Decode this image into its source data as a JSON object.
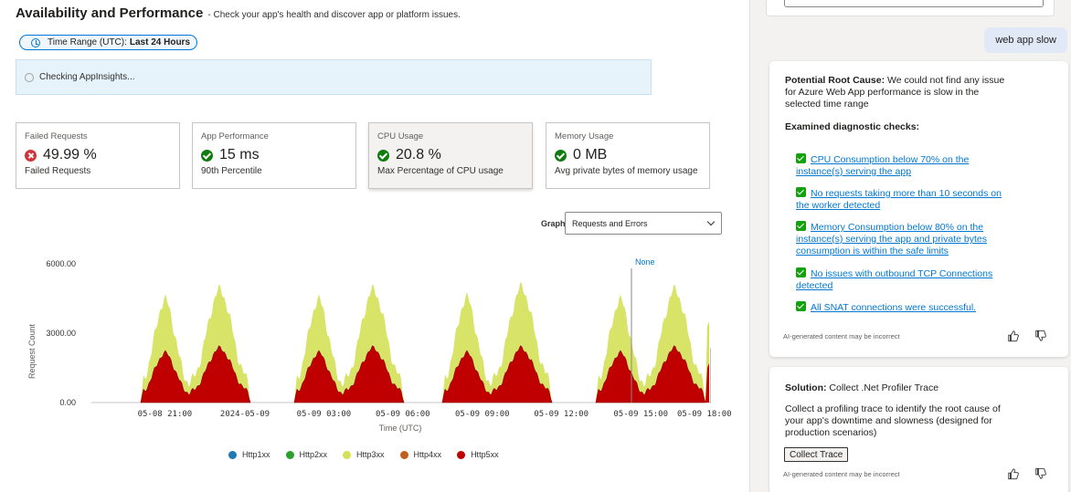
{
  "header": {
    "title": "Availability and Performance",
    "subtitle": "Check your app's health and discover app or platform issues."
  },
  "time_range": {
    "prefix": "Time Range (UTC):",
    "value": "Last 24 Hours"
  },
  "banner": {
    "text": "Checking AppInsights..."
  },
  "cards": [
    {
      "label": "Failed Requests",
      "value": "49.99 %",
      "desc": "Failed Requests",
      "status": "error"
    },
    {
      "label": "App Performance",
      "value": "15 ms",
      "desc": "90th Percentile",
      "status": "ok"
    },
    {
      "label": "CPU Usage",
      "value": "20.8 %",
      "desc": "Max Percentage of CPU usage",
      "status": "ok",
      "selected": true
    },
    {
      "label": "Memory Usage",
      "value": "0 MB",
      "desc": "Avg private bytes of memory usage",
      "status": "ok"
    }
  ],
  "graph": {
    "label": "Graph",
    "selected": "Requests and Errors"
  },
  "chart_data": {
    "type": "area",
    "ylabel": "Request Count",
    "xlabel": "Time (UTC)",
    "ylim": [
      0,
      6000
    ],
    "yticks": [
      "0.00",
      "3000.00",
      "6000.00"
    ],
    "xticks": [
      "05-08 21:00",
      "2024-05-09",
      "05-09 03:00",
      "05-09 06:00",
      "05-09 09:00",
      "05-09 12:00",
      "05-09 15:00",
      "05-09 18:00"
    ],
    "cursor_label": "None",
    "legend_position": "bottom",
    "series": [
      {
        "name": "Http1xx",
        "color": "#1f77b4"
      },
      {
        "name": "Http2xx",
        "color": "#2ca02c"
      },
      {
        "name": "Http3xx",
        "color": "#d4e157"
      },
      {
        "name": "Http4xx",
        "color": "#c0601a"
      },
      {
        "name": "Http5xx",
        "color": "#c00000"
      }
    ],
    "blocks": [
      {
        "start": 0.09,
        "end": 0.29,
        "peak_total": 5000,
        "peak_5xx": 2400
      },
      {
        "start": 0.37,
        "end": 0.57,
        "peak_total": 5000,
        "peak_5xx": 2400
      },
      {
        "start": 0.64,
        "end": 0.84,
        "peak_total": 5100,
        "peak_5xx": 2400
      },
      {
        "start": 0.92,
        "end": 1.12,
        "peak_total": 5000,
        "peak_5xx": 2400
      },
      {
        "start": 1.19,
        "end": 1.39,
        "peak_total": 5000,
        "peak_5xx": 2300
      }
    ]
  },
  "side": {
    "user_message": "web app slow",
    "root_cause_title": "Potential Root Cause:",
    "root_cause_lines": [
      "We could not find any issue",
      "for Azure Web App performance is slow in the",
      "selected time range"
    ],
    "checks_title": "Examined diagnostic checks:",
    "checks": [
      [
        "CPU Consumption below 70% on the",
        "instance(s) serving the app"
      ],
      [
        "No requests taking more than 10 seconds on",
        "the worker detected"
      ],
      [
        "Memory Consumption below 80% on the",
        "instance(s) serving the app and private bytes",
        "consumption is within the safe limits"
      ],
      [
        "No issues with outbound TCP Connections",
        "detected"
      ],
      [
        "All SNAT connections were successful."
      ]
    ],
    "disclaimer": "AI-generated content may be incorrect",
    "solution_title": "Solution:",
    "solution_name": "Collect .Net Profiler Trace",
    "solution_lines": [
      "Collect a profiling trace to identify the root cause of",
      "your app's downtime and slowness (designed for",
      "production scenarios)"
    ],
    "solution_button": "Collect Trace"
  }
}
